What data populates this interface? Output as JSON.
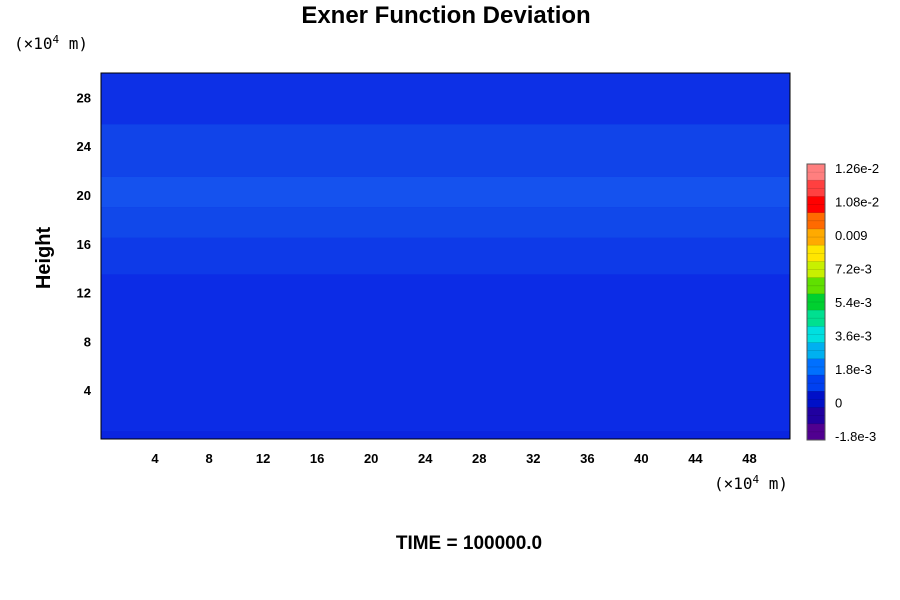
{
  "chart_data": {
    "type": "heatmap",
    "title": "Exner Function Deviation",
    "ylabel": "Height",
    "xlabel": "",
    "y_unit": {
      "prefix": "(×10",
      "exp": "4",
      "suffix": " m)"
    },
    "x_unit": {
      "prefix": "(×10",
      "exp": "4",
      "suffix": " m)"
    },
    "xlim": [
      0,
      51
    ],
    "ylim": [
      0,
      30
    ],
    "x_ticks": [
      4,
      8,
      12,
      16,
      20,
      24,
      28,
      32,
      36,
      40,
      44,
      48
    ],
    "y_ticks": [
      4,
      8,
      12,
      16,
      20,
      24,
      28
    ],
    "bands": [
      {
        "y_from": 0.0,
        "y_to": 13.5,
        "color": "#0c2ce6"
      },
      {
        "y_from": 13.5,
        "y_to": 16.5,
        "color": "#0e3ae8"
      },
      {
        "y_from": 16.5,
        "y_to": 19.0,
        "color": "#1148ea"
      },
      {
        "y_from": 19.0,
        "y_to": 21.5,
        "color": "#1552ee"
      },
      {
        "y_from": 21.5,
        "y_to": 25.8,
        "color": "#1144e9"
      },
      {
        "y_from": 25.8,
        "y_to": 30.0,
        "color": "#0d30e6"
      }
    ],
    "colorbar": {
      "labels": [
        "1.26e-2",
        "1.08e-2",
        "0.009",
        "7.2e-3",
        "5.4e-3",
        "3.6e-3",
        "1.8e-3",
        "0",
        "-1.8e-3"
      ],
      "colors": [
        "#ff7f7f",
        "#ff4040",
        "#ff0000",
        "#ff6a00",
        "#ffaa00",
        "#ffe600",
        "#c8f000",
        "#60e000",
        "#00d030",
        "#00e090",
        "#00e0e0",
        "#00b0f0",
        "#0070ff",
        "#0040f0",
        "#0010c8",
        "#2000a0",
        "#500090"
      ]
    }
  },
  "footer": {
    "time_label": "TIME = 100000.0"
  }
}
